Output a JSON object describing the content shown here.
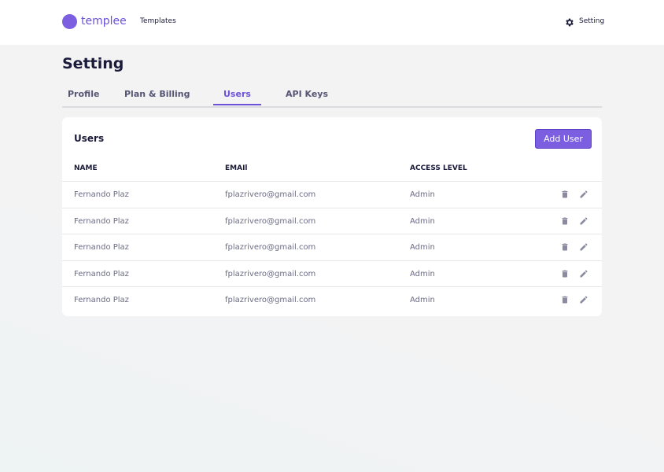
{
  "header": {
    "brand": "templee",
    "nav": "Templates",
    "setting": "Setting"
  },
  "page": {
    "title": "Setting",
    "tabs": [
      "Profile",
      "Plan & Billing",
      "Users",
      "API Keys"
    ]
  },
  "panel": {
    "title": "Users",
    "button": "Add User"
  },
  "table": {
    "columns": [
      "NAME",
      "EMAIl",
      "ACCESS LEVEL"
    ],
    "rows": [
      [
        "Fernando Plaz",
        "fplazrivero@gmail.com",
        "Admin"
      ],
      [
        "Fernando Plaz",
        "fplazrivero@gmail.com",
        "Admin"
      ],
      [
        "Fernando Plaz",
        "fplazrivero@gmail.com",
        "Admin"
      ],
      [
        "Fernando Plaz",
        "fplazrivero@gmail.com",
        "Admin"
      ],
      [
        "Fernando Plaz",
        "fplazrivero@gmail.com",
        "Admin"
      ]
    ]
  }
}
